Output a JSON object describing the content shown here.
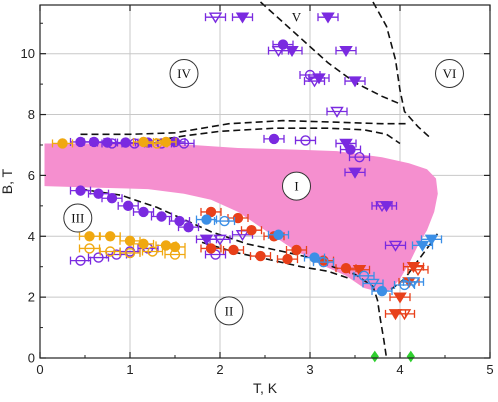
{
  "chart_data": {
    "type": "scatter",
    "xlabel": "T, K",
    "ylabel": "B, T",
    "xlim": [
      0,
      5
    ],
    "ylim": [
      0,
      11.6
    ],
    "xticks": [
      "0",
      "1",
      "2",
      "3",
      "4",
      "5"
    ],
    "yticks": [
      "0",
      "2",
      "4",
      "6",
      "8",
      "10"
    ],
    "grid": true,
    "colors": {
      "purple": "#7a2ae0",
      "orange": "#f0a810",
      "red": "#e8401a",
      "blue": "#3b8fe6",
      "green": "#2fcf2f",
      "pink": "#f58fcf",
      "line": "#111111"
    },
    "regions": [
      {
        "label": "I",
        "T": 2.85,
        "B": 5.65
      },
      {
        "label": "II",
        "T": 2.1,
        "B": 1.55
      },
      {
        "label": "III",
        "T": 0.42,
        "B": 4.6
      },
      {
        "label": "IV",
        "T": 1.6,
        "B": 9.35
      },
      {
        "label": "V",
        "T": 2.85,
        "B": 11.2
      },
      {
        "label": "VI",
        "T": 4.55,
        "B": 9.35
      }
    ],
    "pink_region": [
      [
        0.05,
        7.05
      ],
      [
        1.0,
        7.05
      ],
      [
        1.7,
        7.0
      ],
      [
        2.2,
        6.9
      ],
      [
        2.8,
        6.85
      ],
      [
        3.3,
        6.8
      ],
      [
        3.8,
        6.6
      ],
      [
        4.1,
        6.4
      ],
      [
        4.3,
        6.2
      ],
      [
        4.4,
        5.9
      ],
      [
        4.42,
        5.4
      ],
      [
        4.38,
        4.8
      ],
      [
        4.3,
        4.2
      ],
      [
        4.2,
        3.7
      ],
      [
        4.1,
        3.1
      ],
      [
        4.0,
        2.6
      ],
      [
        3.9,
        2.25
      ],
      [
        3.8,
        2.15
      ],
      [
        3.6,
        2.3
      ],
      [
        3.4,
        2.7
      ],
      [
        3.1,
        3.1
      ],
      [
        2.8,
        3.6
      ],
      [
        2.5,
        4.2
      ],
      [
        2.2,
        4.8
      ],
      [
        1.9,
        5.2
      ],
      [
        1.6,
        5.4
      ],
      [
        1.2,
        5.55
      ],
      [
        0.6,
        5.6
      ],
      [
        0.05,
        5.65
      ]
    ],
    "series": [
      {
        "color": "purple",
        "symbol": "circle",
        "fill": "filled",
        "points": [
          [
            0.45,
            7.1
          ],
          [
            0.6,
            7.1
          ],
          [
            0.75,
            7.08
          ],
          [
            0.95,
            7.08
          ],
          [
            1.2,
            7.08
          ],
          [
            1.5,
            7.1
          ],
          [
            2.6,
            7.2
          ],
          [
            3.45,
            6.85
          ],
          [
            0.45,
            5.5
          ],
          [
            0.65,
            5.4
          ],
          [
            0.8,
            5.25
          ],
          [
            0.98,
            5.0
          ],
          [
            1.15,
            4.8
          ],
          [
            1.35,
            4.65
          ],
          [
            1.55,
            4.5
          ],
          [
            1.65,
            4.3
          ],
          [
            2.7,
            10.3
          ]
        ]
      },
      {
        "color": "purple",
        "symbol": "circle",
        "fill": "open",
        "points": [
          [
            0.8,
            7.05
          ],
          [
            1.05,
            7.05
          ],
          [
            1.35,
            7.05
          ],
          [
            1.6,
            7.05
          ],
          [
            2.95,
            7.15
          ],
          [
            3.55,
            6.6
          ],
          [
            0.45,
            3.2
          ],
          [
            0.65,
            3.3
          ],
          [
            0.85,
            3.4
          ],
          [
            1.0,
            3.5
          ],
          [
            1.2,
            3.6
          ],
          [
            3.0,
            9.3
          ],
          [
            1.95,
            3.4
          ]
        ]
      },
      {
        "color": "purple",
        "symbol": "triangle-down",
        "fill": "filled",
        "points": [
          [
            2.25,
            11.2
          ],
          [
            2.8,
            10.1
          ],
          [
            3.2,
            11.2
          ],
          [
            3.4,
            10.1
          ],
          [
            3.1,
            9.2
          ],
          [
            3.5,
            9.1
          ],
          [
            3.4,
            7.05
          ],
          [
            3.5,
            6.1
          ],
          [
            3.85,
            5.0
          ],
          [
            1.85,
            3.9
          ]
        ]
      },
      {
        "color": "purple",
        "symbol": "triangle-down",
        "fill": "open",
        "points": [
          [
            1.95,
            11.2
          ],
          [
            2.65,
            10.1
          ],
          [
            3.05,
            9.1
          ],
          [
            3.3,
            8.1
          ],
          [
            3.95,
            3.7
          ],
          [
            3.8,
            5.0
          ],
          [
            2.0,
            3.9
          ],
          [
            2.25,
            4.05
          ]
        ]
      },
      {
        "color": "orange",
        "symbol": "circle",
        "fill": "filled",
        "points": [
          [
            0.55,
            4.0
          ],
          [
            0.78,
            4.0
          ],
          [
            1.0,
            3.85
          ],
          [
            1.15,
            3.75
          ],
          [
            1.4,
            3.7
          ],
          [
            1.5,
            3.65
          ],
          [
            1.15,
            7.1
          ],
          [
            1.4,
            7.1
          ],
          [
            0.25,
            7.05
          ]
        ]
      },
      {
        "color": "orange",
        "symbol": "circle",
        "fill": "open",
        "points": [
          [
            0.55,
            3.6
          ],
          [
            0.78,
            3.5
          ],
          [
            1.0,
            3.45
          ],
          [
            1.25,
            3.5
          ],
          [
            1.5,
            3.4
          ],
          [
            1.3,
            7.05
          ]
        ]
      },
      {
        "color": "red",
        "symbol": "circle",
        "fill": "filled",
        "points": [
          [
            1.9,
            4.8
          ],
          [
            2.2,
            4.6
          ],
          [
            2.35,
            4.2
          ],
          [
            2.6,
            4.0
          ],
          [
            2.85,
            3.55
          ],
          [
            3.15,
            3.2
          ],
          [
            3.4,
            2.95
          ],
          [
            1.9,
            3.6
          ],
          [
            2.15,
            3.55
          ],
          [
            2.45,
            3.35
          ],
          [
            2.75,
            3.25
          ]
        ]
      },
      {
        "color": "red",
        "symbol": "triangle-down",
        "fill": "filled",
        "points": [
          [
            3.55,
            2.9
          ],
          [
            4.0,
            2.0
          ],
          [
            3.95,
            1.45
          ],
          [
            4.1,
            2.5
          ],
          [
            4.15,
            3.0
          ]
        ]
      },
      {
        "color": "red",
        "symbol": "triangle-down",
        "fill": "open",
        "points": [
          [
            4.05,
            1.45
          ],
          [
            4.2,
            2.9
          ]
        ]
      },
      {
        "color": "blue",
        "symbol": "circle",
        "fill": "filled",
        "points": [
          [
            2.65,
            4.05
          ],
          [
            3.05,
            3.3
          ],
          [
            3.8,
            2.2
          ],
          [
            1.85,
            4.55
          ]
        ]
      },
      {
        "color": "blue",
        "symbol": "circle",
        "fill": "open",
        "points": [
          [
            3.15,
            3.15
          ],
          [
            3.6,
            2.7
          ],
          [
            4.05,
            2.4
          ],
          [
            2.05,
            4.5
          ]
        ]
      },
      {
        "color": "blue",
        "symbol": "triangle-down",
        "fill": "filled",
        "points": [
          [
            4.25,
            3.7
          ],
          [
            4.35,
            3.9
          ]
        ]
      },
      {
        "color": "blue",
        "symbol": "triangle-down",
        "fill": "open",
        "points": [
          [
            3.7,
            2.45
          ],
          [
            4.15,
            2.5
          ]
        ]
      },
      {
        "color": "green",
        "symbol": "diamond",
        "fill": "filled",
        "points": [
          [
            3.72,
            0.05
          ],
          [
            4.12,
            0.05
          ]
        ]
      }
    ],
    "phase_lines": [
      [
        [
          1.3,
          7.15
        ],
        [
          1.6,
          7.3
        ],
        [
          2.0,
          7.45
        ],
        [
          2.6,
          7.55
        ],
        [
          3.2,
          7.55
        ],
        [
          3.6,
          7.5
        ],
        [
          3.85,
          7.35
        ],
        [
          4.0,
          7.05
        ]
      ],
      [
        [
          0.45,
          7.35
        ],
        [
          1.0,
          7.35
        ],
        [
          1.5,
          7.4
        ],
        [
          2.1,
          7.7
        ],
        [
          2.7,
          7.8
        ],
        [
          3.3,
          7.75
        ],
        [
          3.8,
          7.7
        ],
        [
          4.1,
          7.7
        ]
      ],
      [
        [
          2.45,
          11.7
        ],
        [
          2.75,
          10.9
        ],
        [
          3.2,
          9.7
        ],
        [
          3.5,
          9.05
        ],
        [
          3.8,
          8.6
        ],
        [
          4.0,
          8.35
        ]
      ],
      [
        [
          3.7,
          11.7
        ],
        [
          3.85,
          10.9
        ],
        [
          3.95,
          9.8
        ],
        [
          4.0,
          8.8
        ],
        [
          4.05,
          8.1
        ],
        [
          4.2,
          7.6
        ],
        [
          4.35,
          7.2
        ]
      ],
      [
        [
          0.45,
          5.55
        ],
        [
          0.9,
          5.35
        ],
        [
          1.3,
          4.95
        ],
        [
          1.6,
          4.55
        ],
        [
          1.9,
          4.15
        ],
        [
          2.3,
          3.75
        ],
        [
          2.7,
          3.5
        ],
        [
          3.0,
          3.3
        ],
        [
          3.2,
          3.05
        ],
        [
          3.5,
          2.75
        ],
        [
          3.7,
          2.35
        ],
        [
          3.75,
          1.9
        ],
        [
          3.78,
          1.3
        ],
        [
          3.82,
          0.6
        ],
        [
          3.85,
          0.0
        ]
      ],
      [
        [
          1.8,
          3.8
        ],
        [
          2.2,
          3.45
        ],
        [
          2.6,
          3.2
        ],
        [
          2.9,
          3.0
        ],
        [
          3.2,
          2.85
        ],
        [
          3.45,
          2.6
        ]
      ],
      [
        [
          3.9,
          2.25
        ],
        [
          4.05,
          2.6
        ],
        [
          4.2,
          3.2
        ],
        [
          4.35,
          3.8
        ],
        [
          4.42,
          4.1
        ]
      ]
    ]
  }
}
